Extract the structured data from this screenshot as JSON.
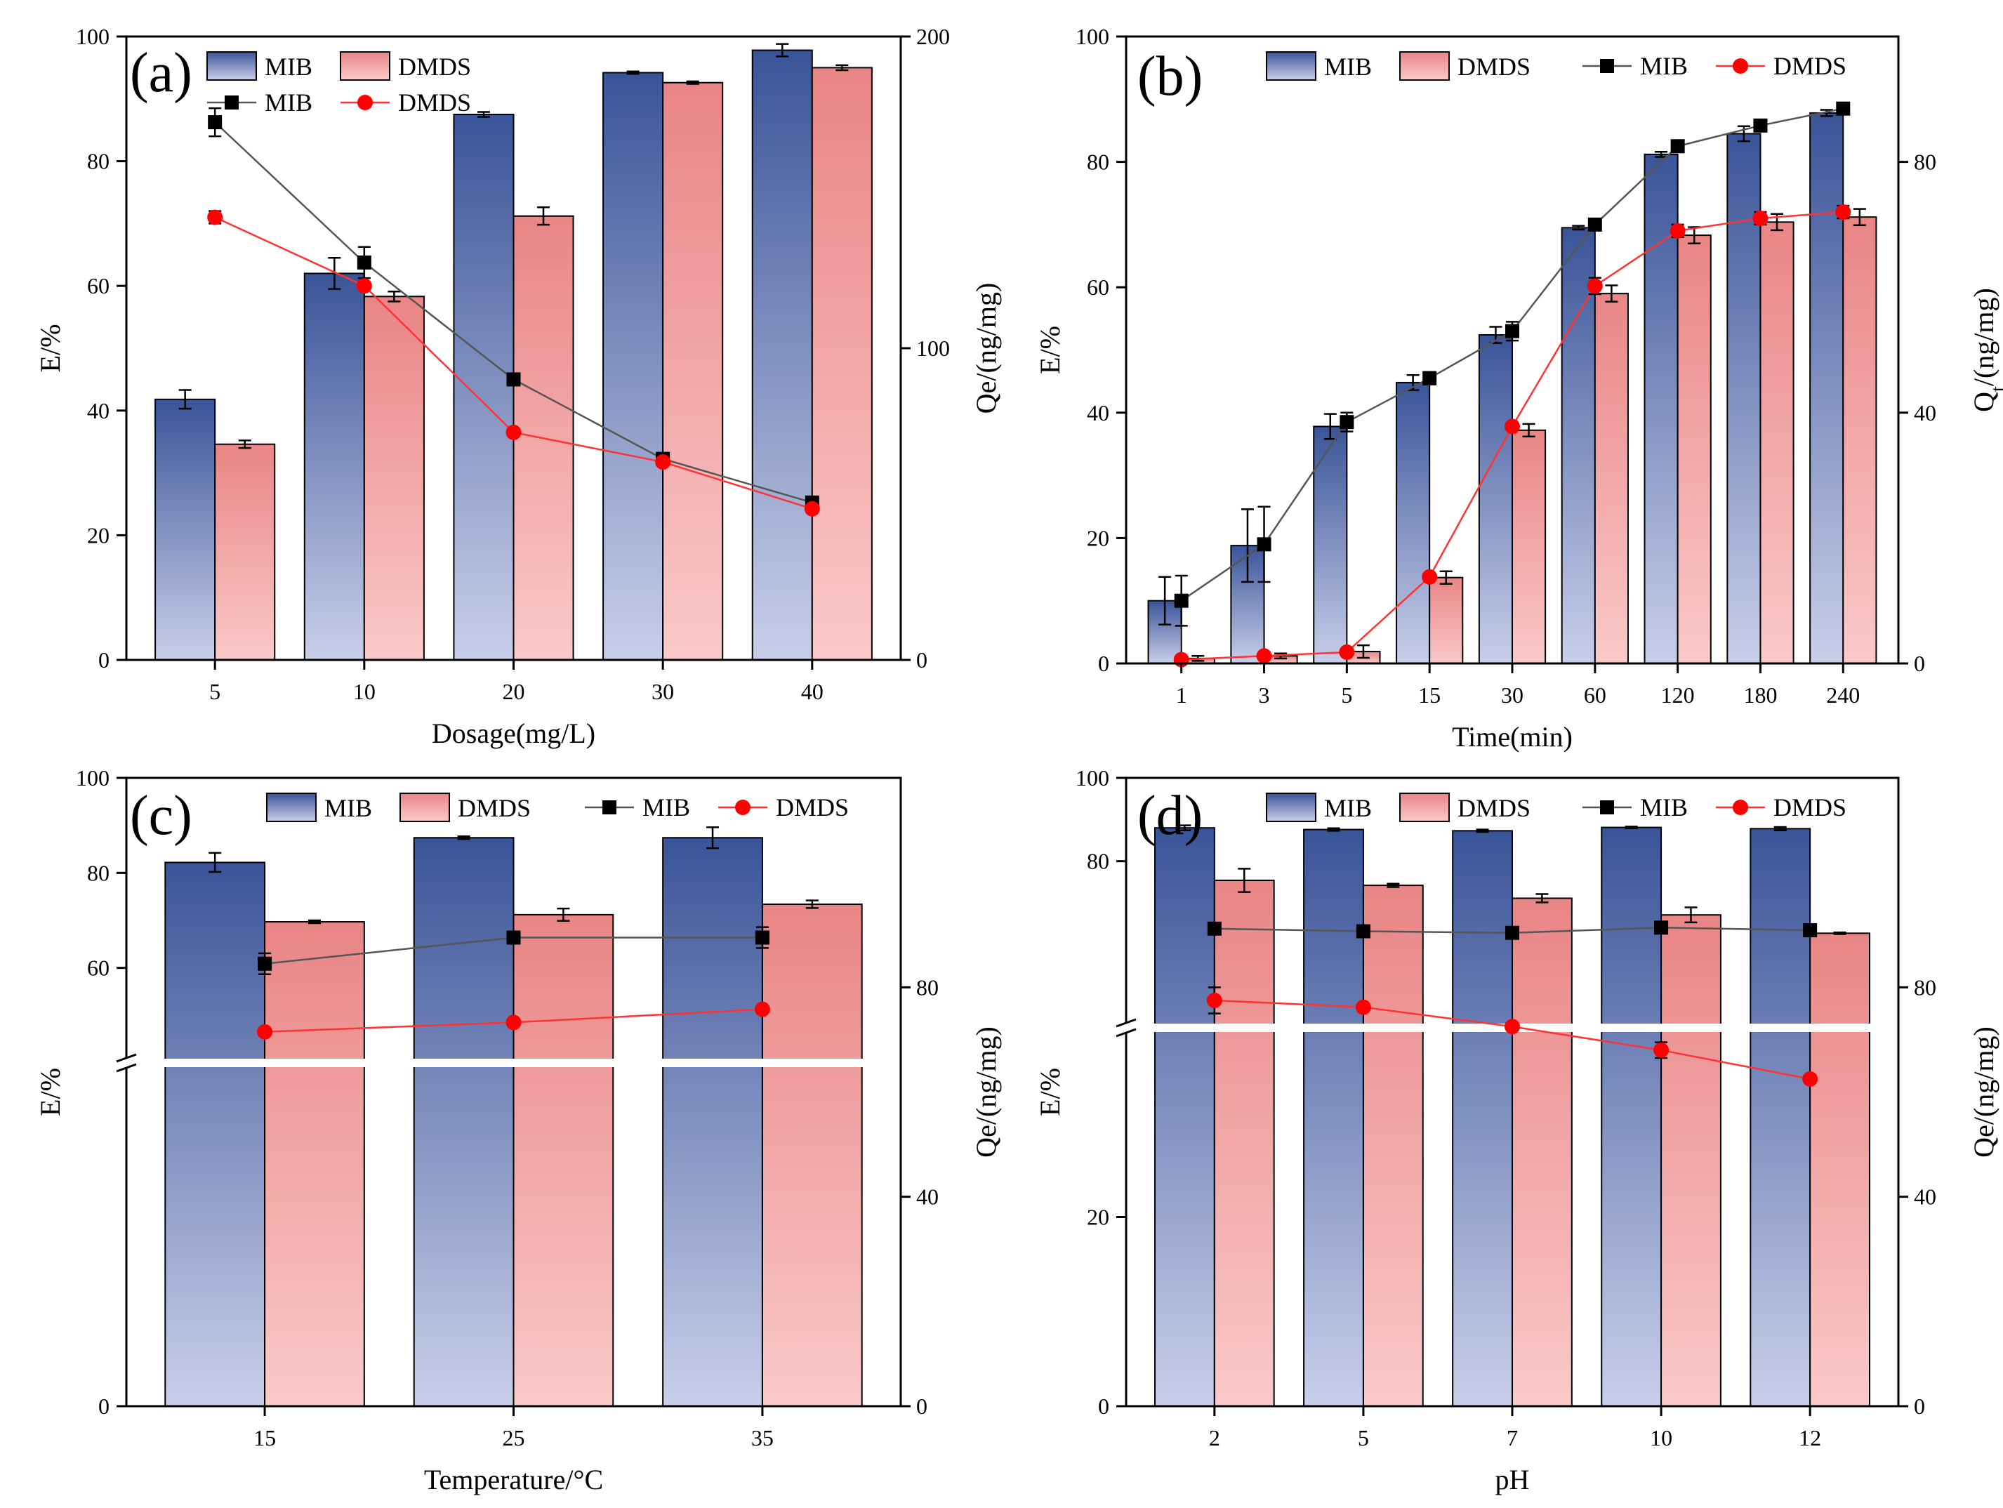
{
  "colors": {
    "mib_bar_top": "#3a5499",
    "mib_bar_bottom": "#c9cfe9",
    "dmds_bar_top": "#e98585",
    "dmds_bar_bottom": "#fbc9c9",
    "mib_line": "#555555",
    "mib_marker": "#000000",
    "dmds_line": "#ff3333",
    "dmds_marker": "#ff0000"
  },
  "chart_data": [
    {
      "panel": "a",
      "tag": "(a)",
      "type": "bar+line",
      "xlabel": "Dosage(mg/L)",
      "ylabel": "E/%",
      "y2label": "Qe/(ng/mg)",
      "categories": [
        "5",
        "10",
        "20",
        "30",
        "40"
      ],
      "ylim": [
        0,
        100
      ],
      "yticks": [
        0,
        20,
        40,
        60,
        80,
        100
      ],
      "y2lim": [
        0,
        200
      ],
      "y2ticks": [
        0,
        100,
        200
      ],
      "legend": {
        "mib_bar": "MIB",
        "dmds_bar": "DMDS",
        "mib_line": "MIB",
        "dmds_line": "DMDS"
      },
      "bars": [
        {
          "name": "MIB",
          "values": [
            41.8,
            62.0,
            87.5,
            94.2,
            97.8
          ],
          "errors": [
            1.5,
            2.5,
            0.4,
            0.2,
            1.0
          ]
        },
        {
          "name": "DMDS",
          "values": [
            34.6,
            58.3,
            71.2,
            92.6,
            95.0
          ],
          "errors": [
            0.6,
            0.8,
            1.4,
            0.2,
            0.4
          ]
        }
      ],
      "lines": [
        {
          "name": "MIB",
          "values": [
            172.5,
            127.5,
            90.0,
            64.5,
            50.5
          ],
          "errors": [
            4.5,
            5.0,
            0,
            0,
            0
          ]
        },
        {
          "name": "DMDS",
          "values": [
            142.0,
            120.0,
            73.0,
            63.5,
            48.5
          ],
          "errors": [
            2.0,
            0,
            0,
            0,
            0
          ]
        }
      ]
    },
    {
      "panel": "b",
      "tag": "(b)",
      "type": "bar+line",
      "xlabel": "Time(min)",
      "ylabel": "E/%",
      "y2label": "Qt/(ng/mg)",
      "y2label_main": "Q",
      "y2label_sub": "t",
      "y2label_rest": "/(ng/mg)",
      "categories": [
        "1",
        "3",
        "5",
        "15",
        "30",
        "60",
        "120",
        "180",
        "240"
      ],
      "ylim": [
        0,
        100
      ],
      "yticks": [
        0,
        20,
        40,
        60,
        80,
        100
      ],
      "y2lim": [
        0,
        100
      ],
      "y2ticks": [
        0,
        40,
        80
      ],
      "legend": {
        "mib_bar": "MIB",
        "dmds_bar": "DMDS",
        "mib_line": "MIB",
        "dmds_line": "DMDS"
      },
      "bars": [
        {
          "name": "MIB",
          "values": [
            10.0,
            18.8,
            37.8,
            44.8,
            52.4,
            69.5,
            81.2,
            84.5,
            87.8
          ],
          "errors": [
            3.8,
            5.8,
            2.0,
            1.2,
            1.3,
            0.3,
            0.4,
            1.2,
            0.5
          ]
        },
        {
          "name": "DMDS",
          "values": [
            0.8,
            1.2,
            1.9,
            13.7,
            37.2,
            59.0,
            68.3,
            70.4,
            71.2
          ],
          "errors": [
            0.4,
            0.4,
            1.0,
            1.0,
            1.0,
            1.3,
            1.3,
            1.3,
            1.3
          ]
        }
      ],
      "lines": [
        {
          "name": "MIB",
          "values": [
            10.0,
            19.0,
            38.5,
            45.5,
            53.0,
            70.0,
            82.5,
            85.8,
            88.5
          ],
          "errors": [
            4.0,
            6.0,
            1.5,
            1.0,
            1.5,
            0,
            0,
            0,
            0
          ]
        },
        {
          "name": "DMDS",
          "values": [
            0.6,
            1.2,
            1.8,
            13.8,
            37.8,
            60.2,
            69.0,
            71.0,
            72.0
          ],
          "errors": [
            0,
            0,
            0,
            0,
            0,
            1.3,
            1.0,
            1.0,
            1.0
          ]
        }
      ]
    },
    {
      "panel": "c",
      "tag": "(c)",
      "type": "bar+line",
      "xlabel": "Temperature/°C",
      "ylabel": "E/%",
      "y2label": "Qe/(ng/mg)",
      "categories": [
        "15",
        "25",
        "35"
      ],
      "ylim_upper": [
        40,
        100
      ],
      "yticks_upper": [
        60,
        80,
        100
      ],
      "ylim_lower": [
        0,
        40
      ],
      "yticks_lower": [
        0
      ],
      "axis_break": true,
      "y2lim": [
        0,
        120
      ],
      "y2ticks": [
        0,
        40,
        80
      ],
      "legend": {
        "mib_bar": "MIB",
        "dmds_bar": "DMDS",
        "mib_line": "MIB",
        "dmds_line": "DMDS"
      },
      "bars": [
        {
          "name": "MIB",
          "values": [
            82.2,
            87.4,
            87.4
          ],
          "errors": [
            2.0,
            0.3,
            2.2
          ]
        },
        {
          "name": "DMDS",
          "values": [
            69.7,
            71.2,
            73.4
          ],
          "errors": [
            0.3,
            1.3,
            0.8
          ]
        }
      ],
      "lines": [
        {
          "name": "MIB",
          "values": [
            84.5,
            89.5,
            89.5
          ],
          "errors": [
            2.0,
            0,
            2.0
          ]
        },
        {
          "name": "DMDS",
          "values": [
            71.5,
            73.3,
            75.8
          ],
          "errors": [
            0,
            0,
            0
          ]
        }
      ]
    },
    {
      "panel": "d",
      "tag": "(d)",
      "type": "bar+line",
      "xlabel": "pH",
      "ylabel": "E/%",
      "y2label": "Qe/(ng/mg)",
      "categories": [
        "2",
        "5",
        "7",
        "10",
        "12"
      ],
      "ylim_upper": [
        40,
        100
      ],
      "yticks_upper": [
        80,
        100
      ],
      "ylim_lower": [
        0,
        40
      ],
      "yticks_lower": [
        0,
        20
      ],
      "axis_break": true,
      "y2lim": [
        0,
        120
      ],
      "y2ticks": [
        0,
        40,
        80
      ],
      "legend": {
        "mib_bar": "MIB",
        "dmds_bar": "DMDS",
        "mib_line": "MIB",
        "dmds_line": "DMDS"
      },
      "bars": [
        {
          "name": "MIB",
          "values": [
            88.0,
            87.6,
            87.3,
            88.1,
            87.8
          ],
          "errors": [
            0.6,
            0.3,
            0.3,
            0.2,
            0.4
          ]
        },
        {
          "name": "DMDS",
          "values": [
            75.4,
            74.2,
            71.1,
            67.1,
            62.7
          ],
          "errors": [
            2.8,
            0.4,
            1.0,
            1.8,
            0.2
          ]
        }
      ],
      "lines": [
        {
          "name": "MIB",
          "values": [
            91.2,
            90.7,
            90.4,
            91.4,
            90.9
          ],
          "errors": [
            0,
            0,
            0,
            0,
            0
          ]
        },
        {
          "name": "DMDS",
          "values": [
            77.5,
            76.2,
            72.5,
            68.0,
            62.5
          ],
          "errors": [
            2.5,
            0,
            0,
            1.5,
            0
          ]
        }
      ]
    }
  ]
}
